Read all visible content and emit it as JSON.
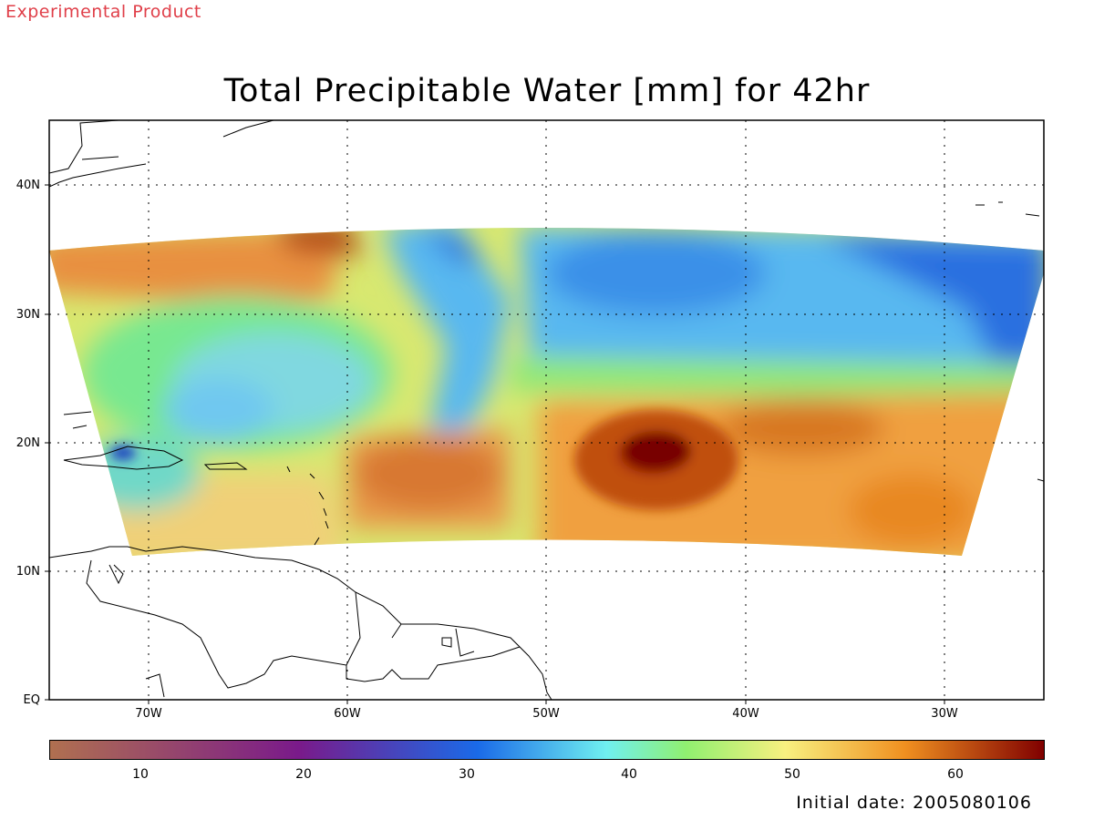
{
  "banner": "Experimental Product",
  "title": "Total Precipitable Water [mm] for 42hr",
  "footer": "Initial date: 2005080106",
  "map": {
    "lon_range": [
      -75,
      -25
    ],
    "lat_range": [
      0,
      45
    ],
    "lat_ticks": [
      {
        "value": 40,
        "label": "40N"
      },
      {
        "value": 30,
        "label": "30N"
      },
      {
        "value": 20,
        "label": "20N"
      },
      {
        "value": 10,
        "label": "10N"
      },
      {
        "value": 0,
        "label": "EQ"
      }
    ],
    "lon_ticks": [
      {
        "value": -70,
        "label": "70W"
      },
      {
        "value": -60,
        "label": "60W"
      },
      {
        "value": -50,
        "label": "50W"
      },
      {
        "value": -40,
        "label": "40W"
      },
      {
        "value": -30,
        "label": "30W"
      }
    ],
    "grid": "dotted",
    "field_variable": "Total Precipitable Water"
  },
  "colorbar": {
    "range": [
      5,
      66
    ],
    "ticks": [
      {
        "value": 10,
        "label": "10"
      },
      {
        "value": 20,
        "label": "20"
      },
      {
        "value": 30,
        "label": "30"
      },
      {
        "value": 40,
        "label": "40"
      },
      {
        "value": 50,
        "label": "50"
      },
      {
        "value": 60,
        "label": "60"
      }
    ],
    "colors": {
      "min": "#b07050",
      "purple": "#7a1a8a",
      "blue": "#1a6ae8",
      "cyan": "#70f0f0",
      "green": "#90f070",
      "yellow": "#f8f080",
      "orange": "#f09020",
      "max": "#800000"
    }
  }
}
